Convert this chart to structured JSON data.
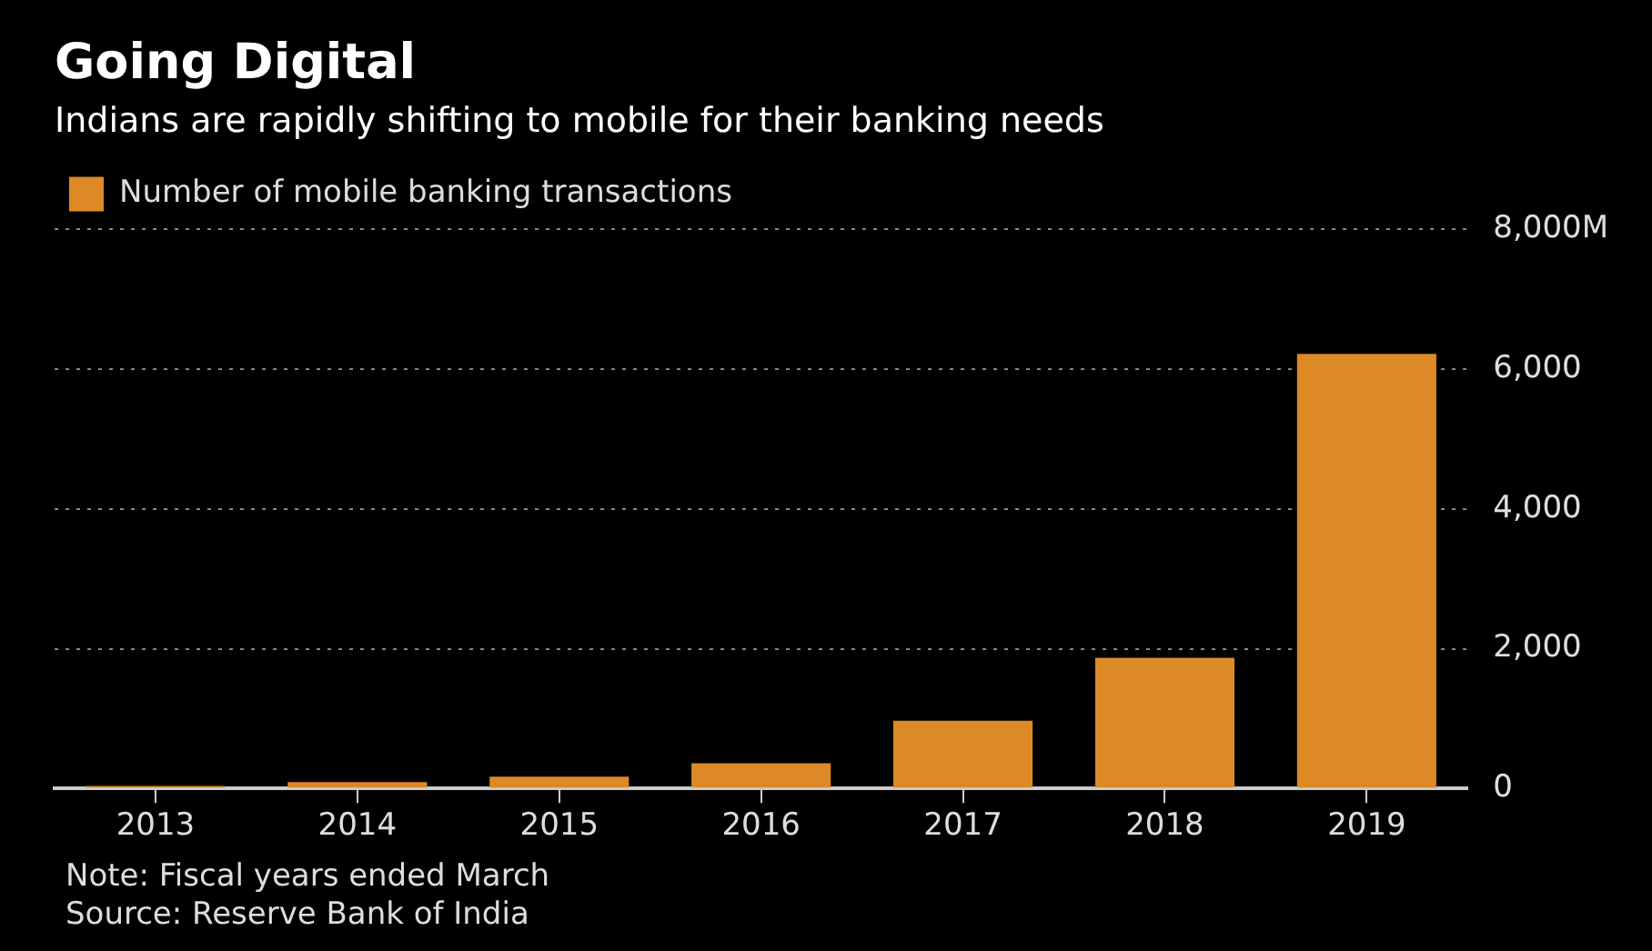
{
  "chart_data": {
    "type": "bar",
    "title": "Going Digital",
    "subtitle": "Indians are rapidly shifting to mobile for their banking needs",
    "categories": [
      "2013",
      "2014",
      "2015",
      "2016",
      "2017",
      "2018",
      "2019"
    ],
    "series": [
      {
        "name": "Number of mobile banking transactions",
        "color": "#dd8a26",
        "values": [
          35,
          90,
          170,
          360,
          970,
          1870,
          6220
        ]
      }
    ],
    "ylim": [
      0,
      8000
    ],
    "yticks": [
      0,
      {
        "value": 2000,
        "label": "2,000"
      },
      {
        "value": 4000,
        "label": "4,000"
      },
      {
        "value": 6000,
        "label": "6,000"
      },
      {
        "value": 8000,
        "label": "8,000M"
      }
    ],
    "grid": "y",
    "legend": "top left",
    "annotations": [
      "Note: Fiscal years ended March",
      "Source: Reserve Bank of India"
    ]
  }
}
